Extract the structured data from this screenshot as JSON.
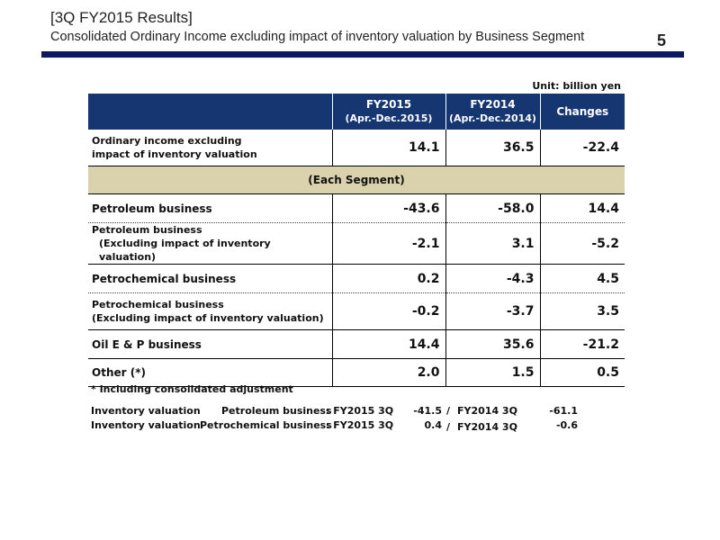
{
  "header": {
    "title": "[3Q FY2015 Results]",
    "subtitle": "Consolidated Ordinary Income excluding impact of inventory valuation by Business Segment",
    "page_number": "5"
  },
  "unit": "Unit: billion yen",
  "table": {
    "columns": [
      {
        "label": "FY2015",
        "sub": "(Apr.-Dec.2015)"
      },
      {
        "label": "FY2014",
        "sub": "(Apr.-Dec.2014)"
      },
      {
        "label": "Changes",
        "sub": ""
      }
    ],
    "ordinary": {
      "label_line1": "Ordinary income excluding",
      "label_line2": "impact of inventory valuation",
      "values": [
        "14.1",
        "36.5",
        "-22.4"
      ]
    },
    "segment_header": "(Each Segment)",
    "rows": [
      {
        "label": "Petroleum business",
        "values": [
          "-43.6",
          "-58.0",
          "14.4"
        ]
      },
      {
        "label_line1": "Petroleum business",
        "label_line2": "(Excluding impact of inventory valuation)",
        "values": [
          "-2.1",
          "3.1",
          "-5.2"
        ]
      },
      {
        "label": "Petrochemical business",
        "values": [
          "0.2",
          "-4.3",
          "4.5"
        ]
      },
      {
        "label_line1": "Petrochemical business",
        "label_line2": "(Excluding impact of inventory valuation)",
        "values": [
          "-0.2",
          "-3.7",
          "3.5"
        ]
      },
      {
        "label": "Oil E & P business",
        "values": [
          "14.4",
          "35.6",
          "-21.2"
        ]
      },
      {
        "label": "Other (*)",
        "values": [
          "2.0",
          "1.5",
          "0.5"
        ]
      }
    ]
  },
  "footnote": "* Including consolidated adjustment",
  "inventory": [
    {
      "label": "Inventory valuation",
      "segment": "Petroleum business",
      "p1": ": FY2015 3Q",
      "v1": "-41.5",
      "slash": "/",
      "p2": "FY2014 3Q",
      "v2": "-61.1"
    },
    {
      "label": "Inventory valuation",
      "segment": "Petrochemical business",
      "p1": ": FY2015 3Q",
      "v1": "0.4",
      "slash": "/",
      "p2": "FY2014 3Q",
      "v2": "-0.6"
    }
  ]
}
